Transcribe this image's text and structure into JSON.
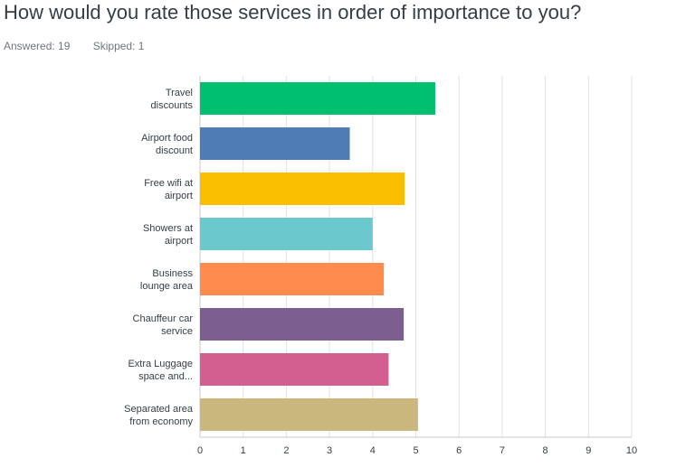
{
  "question": {
    "title": "How would you rate those services in order of importance to you?",
    "answered": "Answered: 19",
    "skipped": "Skipped: 1"
  },
  "chart_data": {
    "type": "bar",
    "orientation": "horizontal",
    "categories": [
      "Travel discounts",
      "Airport food discount",
      "Free wifi at airport",
      "Showers at airport",
      "Business lounge area",
      "Chauffeur car service",
      "Extra Luggage space and...",
      "Separated area from economy"
    ],
    "category_lines": [
      [
        "Travel",
        "discounts"
      ],
      [
        "Airport food",
        "discount"
      ],
      [
        "Free wifi at",
        "airport"
      ],
      [
        "Showers at",
        "airport"
      ],
      [
        "Business",
        "lounge area"
      ],
      [
        "Chauffeur car",
        "service"
      ],
      [
        "Extra Luggage",
        "space and..."
      ],
      [
        "Separated area",
        "from economy"
      ]
    ],
    "values": [
      5.45,
      3.47,
      4.74,
      4.0,
      4.26,
      4.72,
      4.37,
      5.05
    ],
    "colors": [
      "#00bf6f",
      "#507cb6",
      "#f9be00",
      "#6bc8cd",
      "#ff8b4f",
      "#7d5e90",
      "#d25f90",
      "#c9b77d"
    ],
    "xlim": [
      0,
      10
    ],
    "xticks": [
      "0",
      "1",
      "2",
      "3",
      "4",
      "5",
      "6",
      "7",
      "8",
      "9",
      "10"
    ],
    "grid": true,
    "xlabel": "",
    "ylabel": ""
  }
}
